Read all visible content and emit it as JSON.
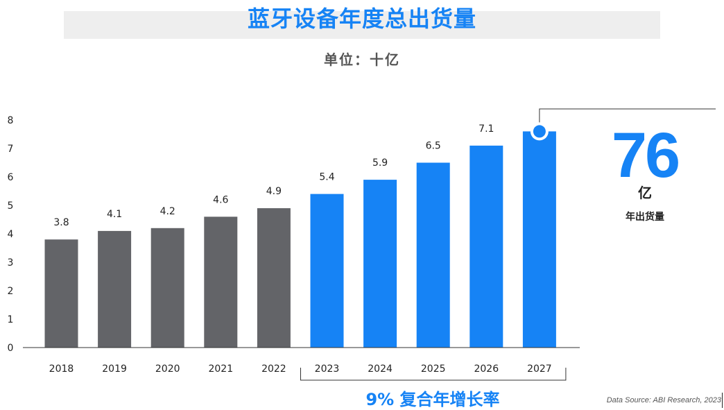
{
  "header": {
    "title": "蓝牙设备年度总出货量",
    "subtitle": "单位：十亿"
  },
  "highlight": {
    "number": "76",
    "unit": "亿",
    "label": "年出货量"
  },
  "cagr": {
    "label": "9% 复合年增长率"
  },
  "source": "Data Source: ABI Research, 2023",
  "colors": {
    "actual": "#636468",
    "forecast": "#1683f5",
    "title": "#1683f5"
  },
  "chart_data": {
    "type": "bar",
    "title": "蓝牙设备年度总出货量",
    "subtitle": "单位：十亿",
    "xlabel": "",
    "ylabel": "",
    "ylim": [
      0,
      8
    ],
    "yticks": [
      0,
      1,
      2,
      3,
      4,
      5,
      6,
      7,
      8
    ],
    "grid": false,
    "categories": [
      "2018",
      "2019",
      "2020",
      "2021",
      "2022",
      "2023",
      "2024",
      "2025",
      "2026",
      "2027"
    ],
    "values": [
      3.8,
      4.1,
      4.2,
      4.6,
      4.9,
      5.4,
      5.9,
      6.5,
      7.1,
      7.6
    ],
    "data_labels": [
      "3.8",
      "4.1",
      "4.2",
      "4.6",
      "4.9",
      "5.4",
      "5.9",
      "6.5",
      "7.1",
      ""
    ],
    "bar_colors": [
      "#636468",
      "#636468",
      "#636468",
      "#636468",
      "#636468",
      "#1683f5",
      "#1683f5",
      "#1683f5",
      "#1683f5",
      "#1683f5"
    ]
  }
}
